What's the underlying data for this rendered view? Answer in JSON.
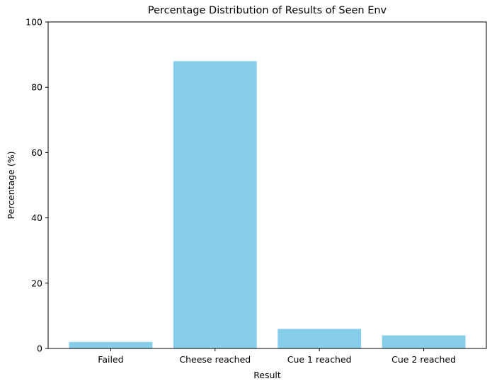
{
  "chart_data": {
    "type": "bar",
    "title": "Percentage Distribution of Results of Seen Env",
    "xlabel": "Result",
    "ylabel": "Percentage (%)",
    "categories": [
      "Failed",
      "Cheese reached",
      "Cue 1 reached",
      "Cue 2 reached"
    ],
    "values": [
      2,
      88,
      6,
      4
    ],
    "ylim": [
      0,
      100
    ],
    "yticks": [
      0,
      20,
      40,
      60,
      80,
      100
    ],
    "grid": false,
    "bar_color": "#87ceeb"
  }
}
